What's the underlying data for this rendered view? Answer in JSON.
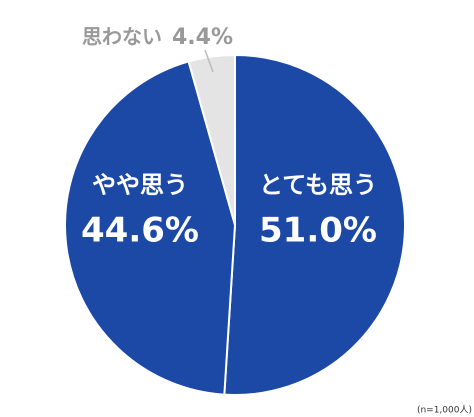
{
  "chart_data": {
    "type": "pie",
    "categories": [
      "とても思う",
      "やや思う",
      "思わない"
    ],
    "values": [
      51.0,
      44.6,
      4.4
    ],
    "value_labels": [
      "51.0%",
      "44.6%",
      "4.4%"
    ],
    "colors": [
      "#1c48a6",
      "#1c48a6",
      "#e4e4e4"
    ],
    "note": "(n=1,000人)"
  }
}
